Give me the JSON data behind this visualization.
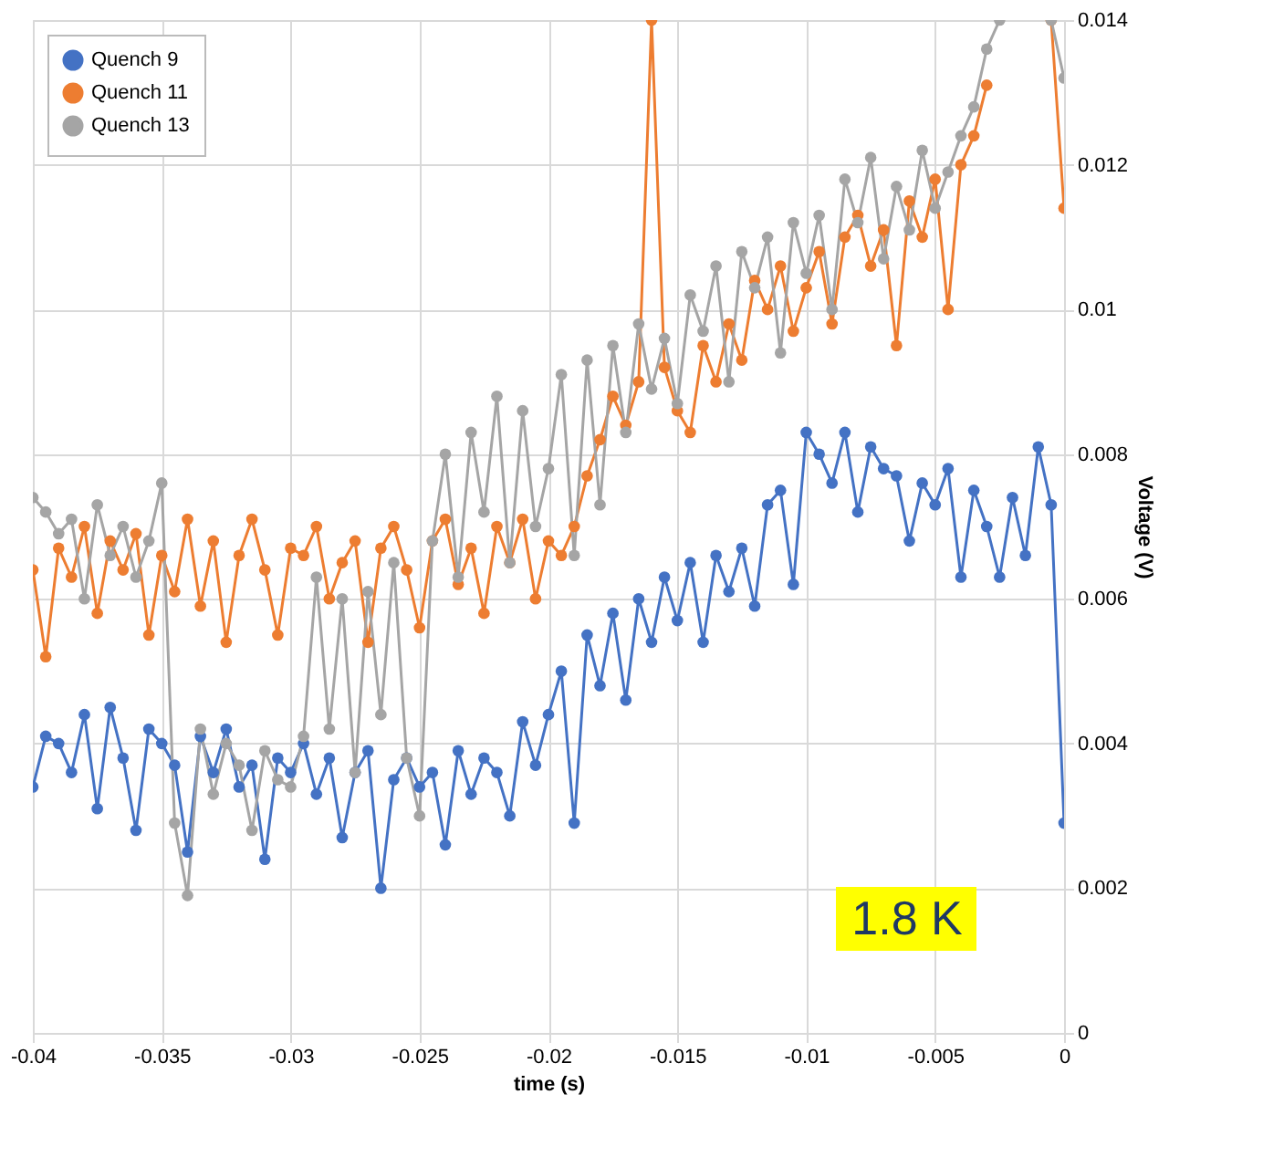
{
  "chart_data": {
    "type": "line",
    "xlabel": "time (s)",
    "ylabel": "Voltage (V)",
    "x": [
      -0.04,
      -0.0395,
      -0.039,
      -0.0385,
      -0.038,
      -0.0375,
      -0.037,
      -0.0365,
      -0.036,
      -0.0355,
      -0.035,
      -0.0345,
      -0.034,
      -0.0335,
      -0.033,
      -0.0325,
      -0.032,
      -0.0315,
      -0.031,
      -0.0305,
      -0.03,
      -0.0295,
      -0.029,
      -0.0285,
      -0.028,
      -0.0275,
      -0.027,
      -0.0265,
      -0.026,
      -0.0255,
      -0.025,
      -0.0245,
      -0.024,
      -0.0235,
      -0.023,
      -0.0225,
      -0.022,
      -0.0215,
      -0.021,
      -0.0205,
      -0.02,
      -0.0195,
      -0.019,
      -0.0185,
      -0.018,
      -0.0175,
      -0.017,
      -0.0165,
      -0.016,
      -0.0155,
      -0.015,
      -0.0145,
      -0.014,
      -0.0135,
      -0.013,
      -0.0125,
      -0.012,
      -0.0115,
      -0.011,
      -0.0105,
      -0.01,
      -0.0095,
      -0.009,
      -0.0085,
      -0.008,
      -0.0075,
      -0.007,
      -0.0065,
      -0.006,
      -0.0055,
      -0.005,
      -0.0045,
      -0.004,
      -0.0035,
      -0.003,
      -0.0025,
      -0.002,
      -0.0015,
      -0.001,
      -0.0005,
      0
    ],
    "series": [
      {
        "name": "Quench 9",
        "color": "#4472c4",
        "values": [
          0.0034,
          0.0041,
          0.004,
          0.0036,
          0.0044,
          0.0031,
          0.0045,
          0.0038,
          0.0028,
          0.0042,
          0.004,
          0.0037,
          0.0025,
          0.0041,
          0.0036,
          0.0042,
          0.0034,
          0.0037,
          0.0024,
          0.0038,
          0.0036,
          0.004,
          0.0033,
          0.0038,
          0.0027,
          0.0036,
          0.0039,
          0.002,
          0.0035,
          0.0038,
          0.0034,
          0.0036,
          0.0026,
          0.0039,
          0.0033,
          0.0038,
          0.0036,
          0.003,
          0.0043,
          0.0037,
          0.0044,
          0.005,
          0.0029,
          0.0055,
          0.0048,
          0.0058,
          0.0046,
          0.006,
          0.0054,
          0.0063,
          0.0057,
          0.0065,
          0.0054,
          0.0066,
          0.0061,
          0.0067,
          0.0059,
          0.0073,
          0.0075,
          0.0062,
          0.0083,
          0.008,
          0.0076,
          0.0083,
          0.0072,
          0.0081,
          0.0078,
          0.0077,
          0.0068,
          0.0076,
          0.0073,
          0.0078,
          0.0063,
          0.0075,
          0.007,
          0.0063,
          0.0074,
          0.0066,
          0.0081,
          0.0073,
          0.0029
        ]
      },
      {
        "name": "Quench 11",
        "color": "#ed7d31",
        "values": [
          0.0064,
          0.0052,
          0.0067,
          0.0063,
          0.007,
          0.0058,
          0.0068,
          0.0064,
          0.0069,
          0.0055,
          0.0066,
          0.0061,
          0.0071,
          0.0059,
          0.0068,
          0.0054,
          0.0066,
          0.0071,
          0.0064,
          0.0055,
          0.0067,
          0.0066,
          0.007,
          0.006,
          0.0065,
          0.0068,
          0.0054,
          0.0067,
          0.007,
          0.0064,
          0.0056,
          0.0068,
          0.0071,
          0.0062,
          0.0067,
          0.0058,
          0.007,
          0.0065,
          0.0071,
          0.006,
          0.0068,
          0.0066,
          0.007,
          0.0077,
          0.0082,
          0.0088,
          0.0084,
          0.009,
          0.014,
          0.0092,
          0.0086,
          0.0083,
          0.0095,
          0.009,
          0.0098,
          0.0093,
          0.0104,
          0.01,
          0.0106,
          0.0097,
          0.0103,
          0.0108,
          0.0098,
          0.011,
          0.0113,
          0.0106,
          0.0111,
          0.0095,
          0.0115,
          0.011,
          0.0118,
          0.01,
          0.012,
          0.0124,
          0.0131,
          null,
          null,
          null,
          null,
          0.014,
          0.0114
        ]
      },
      {
        "name": "Quench 13",
        "color": "#a5a5a5",
        "values": [
          0.0074,
          0.0072,
          0.0069,
          0.0071,
          0.006,
          0.0073,
          0.0066,
          0.007,
          0.0063,
          0.0068,
          0.0076,
          0.0029,
          0.0019,
          0.0042,
          0.0033,
          0.004,
          0.0037,
          0.0028,
          0.0039,
          0.0035,
          0.0034,
          0.0041,
          0.0063,
          0.0042,
          0.006,
          0.0036,
          0.0061,
          0.0044,
          0.0065,
          0.0038,
          0.003,
          0.0068,
          0.008,
          0.0063,
          0.0083,
          0.0072,
          0.0088,
          0.0065,
          0.0086,
          0.007,
          0.0078,
          0.0091,
          0.0066,
          0.0093,
          0.0073,
          0.0095,
          0.0083,
          0.0098,
          0.0089,
          0.0096,
          0.0087,
          0.0102,
          0.0097,
          0.0106,
          0.009,
          0.0108,
          0.0103,
          0.011,
          0.0094,
          0.0112,
          0.0105,
          0.0113,
          0.01,
          0.0118,
          0.0112,
          0.0121,
          0.0107,
          0.0117,
          0.0111,
          0.0122,
          0.0114,
          0.0119,
          0.0124,
          0.0128,
          0.0136,
          0.014,
          null,
          null,
          null,
          0.014,
          0.0132
        ]
      }
    ],
    "xlim": [
      -0.04,
      0
    ],
    "xticks": [
      -0.04,
      -0.035,
      -0.03,
      -0.025,
      -0.02,
      -0.015,
      -0.01,
      -0.005,
      0
    ],
    "ylim": [
      0,
      0.014
    ],
    "yticks": [
      0,
      0.002,
      0.004,
      0.006,
      0.008,
      0.01,
      0.012,
      0.014
    ],
    "grid": true,
    "legend": "top left",
    "marker": "circle",
    "line_style": "solid",
    "annotations": [
      "1.8 K"
    ]
  }
}
